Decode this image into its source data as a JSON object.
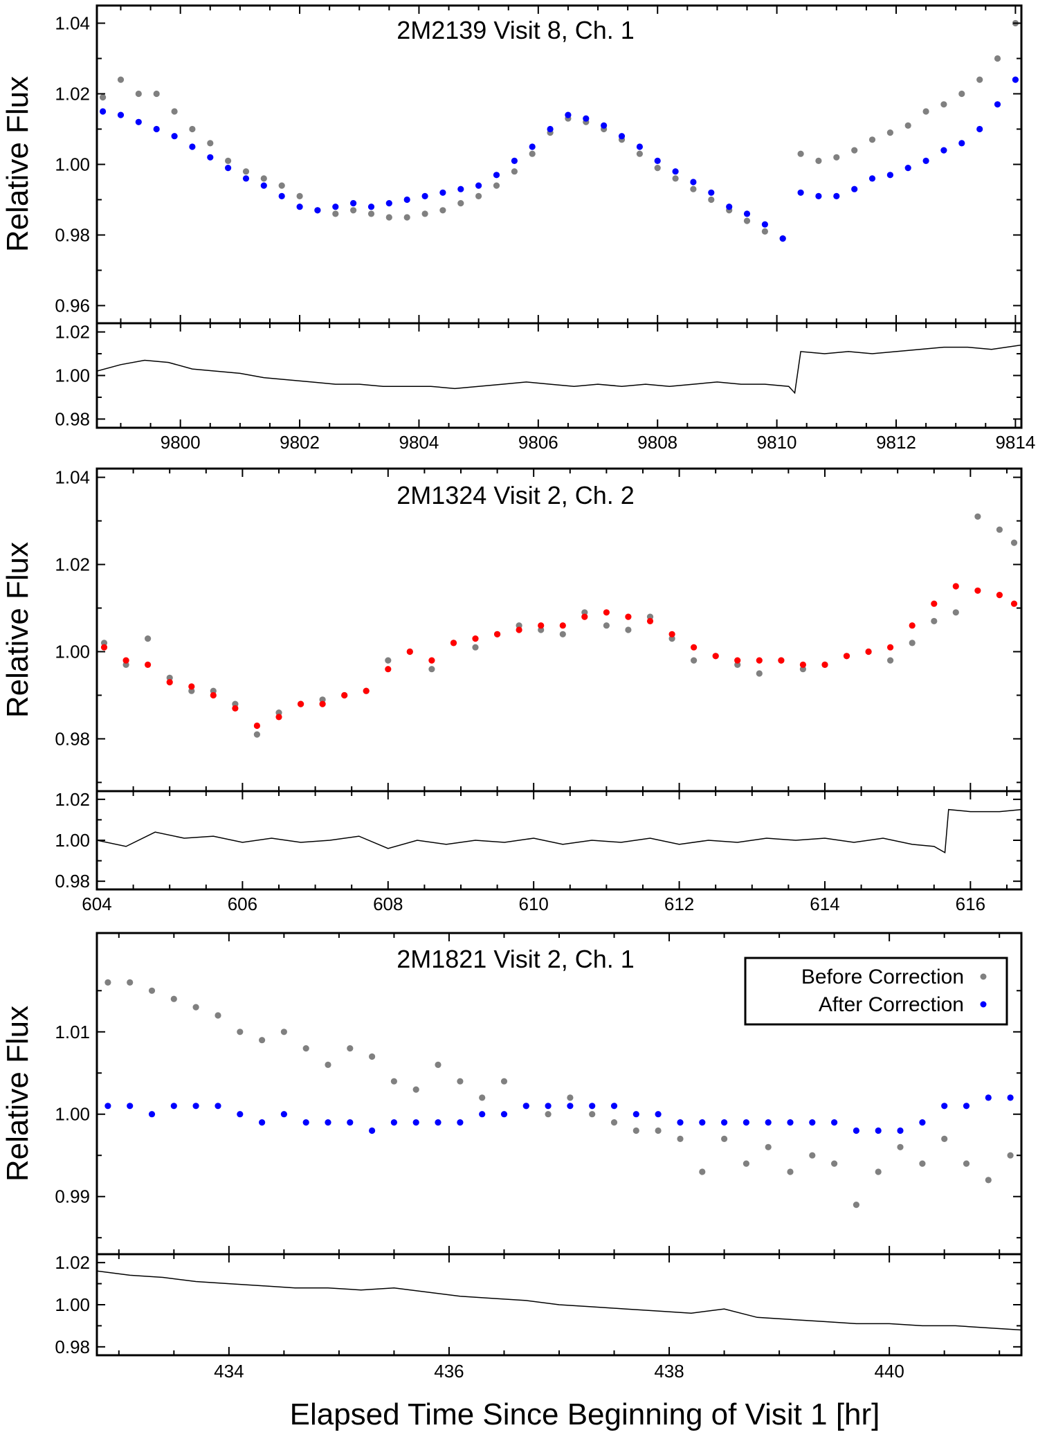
{
  "figure": {
    "ylabel": "Relative Flux",
    "xlabel": "Elapsed Time Since Beginning of Visit 1 [hr]"
  },
  "legend": {
    "before": "Before Correction",
    "after": "After Correction"
  },
  "colors": {
    "before": "#808080",
    "after_blue": "#0000ff",
    "after_red": "#ff0000",
    "line": "#000000"
  },
  "chart_data": [
    {
      "type": "scatter",
      "title": "2M2139 Visit 8, Ch. 1",
      "xlim": [
        9798.6,
        9814.1
      ],
      "ylim": [
        0.955,
        1.045
      ],
      "yticks": [
        "0.96",
        "0.98",
        "1.00",
        "1.02",
        "1.04"
      ],
      "after_color": "blue",
      "series": [
        {
          "name": "Before Correction",
          "x": [
            9798.7,
            9799.0,
            9799.3,
            9799.6,
            9799.9,
            9800.2,
            9800.5,
            9800.8,
            9801.1,
            9801.4,
            9801.7,
            9802.0,
            9802.3,
            9802.6,
            9802.9,
            9803.2,
            9803.5,
            9803.8,
            9804.1,
            9804.4,
            9804.7,
            9805.0,
            9805.3,
            9805.6,
            9805.9,
            9806.2,
            9806.5,
            9806.8,
            9807.1,
            9807.4,
            9807.7,
            9808.0,
            9808.3,
            9808.6,
            9808.9,
            9809.2,
            9809.5,
            9809.8,
            9810.1,
            9810.4,
            9810.7,
            9811.0,
            9811.3,
            9811.6,
            9811.9,
            9812.2,
            9812.5,
            9812.8,
            9813.1,
            9813.4,
            9813.7,
            9814.0
          ],
          "y": [
            1.019,
            1.024,
            1.02,
            1.02,
            1.015,
            1.01,
            1.006,
            1.001,
            0.998,
            0.996,
            0.994,
            0.991,
            0.987,
            0.986,
            0.987,
            0.986,
            0.985,
            0.985,
            0.986,
            0.987,
            0.989,
            0.991,
            0.994,
            0.998,
            1.003,
            1.009,
            1.013,
            1.012,
            1.01,
            1.007,
            1.003,
            0.999,
            0.996,
            0.993,
            0.99,
            0.987,
            0.984,
            0.981,
            0.979,
            1.003,
            1.001,
            1.002,
            1.004,
            1.007,
            1.009,
            1.011,
            1.015,
            1.017,
            1.02,
            1.024,
            1.03,
            1.04
          ]
        },
        {
          "name": "After Correction",
          "x": [
            9798.7,
            9799.0,
            9799.3,
            9799.6,
            9799.9,
            9800.2,
            9800.5,
            9800.8,
            9801.1,
            9801.4,
            9801.7,
            9802.0,
            9802.3,
            9802.6,
            9802.9,
            9803.2,
            9803.5,
            9803.8,
            9804.1,
            9804.4,
            9804.7,
            9805.0,
            9805.3,
            9805.6,
            9805.9,
            9806.2,
            9806.5,
            9806.8,
            9807.1,
            9807.4,
            9807.7,
            9808.0,
            9808.3,
            9808.6,
            9808.9,
            9809.2,
            9809.5,
            9809.8,
            9810.1,
            9810.4,
            9810.7,
            9811.0,
            9811.3,
            9811.6,
            9811.9,
            9812.2,
            9812.5,
            9812.8,
            9813.1,
            9813.4,
            9813.7,
            9814.0
          ],
          "y": [
            1.015,
            1.014,
            1.012,
            1.01,
            1.008,
            1.005,
            1.002,
            0.999,
            0.996,
            0.994,
            0.991,
            0.988,
            0.987,
            0.988,
            0.989,
            0.988,
            0.989,
            0.99,
            0.991,
            0.992,
            0.993,
            0.994,
            0.997,
            1.001,
            1.005,
            1.01,
            1.014,
            1.013,
            1.011,
            1.008,
            1.005,
            1.001,
            0.998,
            0.995,
            0.992,
            0.988,
            0.986,
            0.983,
            0.979,
            0.992,
            0.991,
            0.991,
            0.993,
            0.996,
            0.997,
            0.999,
            1.001,
            1.004,
            1.006,
            1.01,
            1.017,
            1.024
          ]
        }
      ],
      "residual": {
        "ylim": [
          0.976,
          1.024
        ],
        "yticks": [
          "0.98",
          "1.00",
          "1.02"
        ],
        "x": [
          9798.6,
          9799.0,
          9799.4,
          9799.8,
          9800.2,
          9800.6,
          9801.0,
          9801.4,
          9801.8,
          9802.2,
          9802.6,
          9803.0,
          9803.4,
          9803.8,
          9804.2,
          9804.6,
          9805.0,
          9805.4,
          9805.8,
          9806.2,
          9806.6,
          9807.0,
          9807.4,
          9807.8,
          9808.2,
          9808.6,
          9809.0,
          9809.4,
          9809.8,
          9810.2,
          9810.3,
          9810.4,
          9810.8,
          9811.2,
          9811.6,
          9812.0,
          9812.4,
          9812.8,
          9813.2,
          9813.6,
          9814.1
        ],
        "y": [
          1.002,
          1.005,
          1.007,
          1.006,
          1.003,
          1.002,
          1.001,
          0.999,
          0.998,
          0.997,
          0.996,
          0.996,
          0.995,
          0.995,
          0.995,
          0.994,
          0.995,
          0.996,
          0.997,
          0.996,
          0.995,
          0.996,
          0.995,
          0.996,
          0.995,
          0.996,
          0.997,
          0.996,
          0.996,
          0.995,
          0.992,
          1.011,
          1.01,
          1.011,
          1.01,
          1.011,
          1.012,
          1.013,
          1.013,
          1.012,
          1.014
        ]
      },
      "xticks": [
        "9800",
        "9802",
        "9804",
        "9806",
        "9808",
        "9810",
        "9812",
        "9814"
      ],
      "xtick_values": [
        9800,
        9802,
        9804,
        9806,
        9808,
        9810,
        9812,
        9814
      ]
    },
    {
      "type": "scatter",
      "title": "2M1324 Visit 2, Ch. 2",
      "xlim": [
        604.0,
        616.7
      ],
      "ylim": [
        0.968,
        1.042
      ],
      "yticks": [
        "0.98",
        "1.00",
        "1.02",
        "1.04"
      ],
      "after_color": "red",
      "series": [
        {
          "name": "Before Correction",
          "x": [
            604.1,
            604.4,
            604.7,
            605.0,
            605.3,
            605.6,
            605.9,
            606.2,
            606.5,
            606.8,
            607.1,
            607.4,
            607.7,
            608.0,
            608.3,
            608.6,
            608.9,
            609.2,
            609.5,
            609.8,
            610.1,
            610.4,
            610.7,
            611.0,
            611.3,
            611.6,
            611.9,
            612.2,
            612.5,
            612.8,
            613.1,
            613.4,
            613.7,
            614.0,
            614.3,
            614.6,
            614.9,
            615.2,
            615.5,
            615.8,
            616.1,
            616.4,
            616.6
          ],
          "y": [
            1.002,
            0.997,
            1.003,
            0.994,
            0.991,
            0.991,
            0.988,
            0.981,
            0.986,
            0.988,
            0.989,
            0.99,
            0.991,
            0.998,
            1.0,
            0.996,
            1.002,
            1.001,
            1.004,
            1.006,
            1.005,
            1.004,
            1.009,
            1.006,
            1.005,
            1.008,
            1.003,
            0.998,
            0.999,
            0.997,
            0.995,
            0.998,
            0.996,
            0.997,
            0.999,
            1.0,
            0.998,
            1.002,
            1.007,
            1.009,
            1.031,
            1.028,
            1.025
          ]
        },
        {
          "name": "After Correction",
          "x": [
            604.1,
            604.4,
            604.7,
            605.0,
            605.3,
            605.6,
            605.9,
            606.2,
            606.5,
            606.8,
            607.1,
            607.4,
            607.7,
            608.0,
            608.3,
            608.6,
            608.9,
            609.2,
            609.5,
            609.8,
            610.1,
            610.4,
            610.7,
            611.0,
            611.3,
            611.6,
            611.9,
            612.2,
            612.5,
            612.8,
            613.1,
            613.4,
            613.7,
            614.0,
            614.3,
            614.6,
            614.9,
            615.2,
            615.5,
            615.8,
            616.1,
            616.4,
            616.6
          ],
          "y": [
            1.001,
            0.998,
            0.997,
            0.993,
            0.992,
            0.99,
            0.987,
            0.983,
            0.985,
            0.988,
            0.988,
            0.99,
            0.991,
            0.996,
            1.0,
            0.998,
            1.002,
            1.003,
            1.004,
            1.005,
            1.006,
            1.006,
            1.008,
            1.009,
            1.008,
            1.007,
            1.004,
            1.001,
            0.999,
            0.998,
            0.998,
            0.998,
            0.997,
            0.997,
            0.999,
            1.0,
            1.001,
            1.006,
            1.011,
            1.015,
            1.014,
            1.013,
            1.011
          ]
        }
      ],
      "residual": {
        "ylim": [
          0.976,
          1.024
        ],
        "yticks": [
          "0.98",
          "1.00",
          "1.02"
        ],
        "x": [
          604.0,
          604.4,
          604.8,
          605.2,
          605.6,
          606.0,
          606.4,
          606.8,
          607.2,
          607.6,
          608.0,
          608.4,
          608.8,
          609.2,
          609.6,
          610.0,
          610.4,
          610.8,
          611.2,
          611.6,
          612.0,
          612.4,
          612.8,
          613.2,
          613.6,
          614.0,
          614.4,
          614.8,
          615.2,
          615.5,
          615.65,
          615.7,
          616.0,
          616.4,
          616.7
        ],
        "y": [
          1.0,
          0.997,
          1.004,
          1.001,
          1.002,
          0.999,
          1.001,
          0.999,
          1.0,
          1.002,
          0.996,
          1.0,
          0.998,
          1.0,
          0.999,
          1.001,
          0.998,
          1.0,
          0.999,
          1.001,
          0.998,
          1.0,
          0.999,
          1.001,
          1.0,
          1.001,
          0.999,
          1.001,
          0.998,
          0.997,
          0.994,
          1.015,
          1.014,
          1.014,
          1.015
        ]
      },
      "xticks": [
        "604",
        "606",
        "608",
        "610",
        "612",
        "614",
        "616"
      ],
      "xtick_values": [
        604,
        606,
        608,
        610,
        612,
        614,
        616
      ]
    },
    {
      "type": "scatter",
      "title": "2M1821 Visit 2, Ch. 1",
      "xlim": [
        432.8,
        441.2
      ],
      "ylim": [
        0.983,
        1.022
      ],
      "yticks": [
        "0.99",
        "1.00",
        "1.01"
      ],
      "after_color": "blue",
      "series": [
        {
          "name": "Before Correction",
          "x": [
            432.9,
            433.1,
            433.3,
            433.5,
            433.7,
            433.9,
            434.1,
            434.3,
            434.5,
            434.7,
            434.9,
            435.1,
            435.3,
            435.5,
            435.7,
            435.9,
            436.1,
            436.3,
            436.5,
            436.7,
            436.9,
            437.1,
            437.3,
            437.5,
            437.7,
            437.9,
            438.1,
            438.3,
            438.5,
            438.7,
            438.9,
            439.1,
            439.3,
            439.5,
            439.7,
            439.9,
            440.1,
            440.3,
            440.5,
            440.7,
            440.9,
            441.1
          ],
          "y": [
            1.016,
            1.016,
            1.015,
            1.014,
            1.013,
            1.012,
            1.01,
            1.009,
            1.01,
            1.008,
            1.006,
            1.008,
            1.007,
            1.004,
            1.003,
            1.006,
            1.004,
            1.002,
            1.004,
            1.001,
            1.0,
            1.002,
            1.0,
            0.999,
            0.998,
            0.998,
            0.997,
            0.993,
            0.997,
            0.994,
            0.996,
            0.993,
            0.995,
            0.994,
            0.989,
            0.993,
            0.996,
            0.994,
            0.997,
            0.994,
            0.992,
            0.995
          ]
        },
        {
          "name": "After Correction",
          "x": [
            432.9,
            433.1,
            433.3,
            433.5,
            433.7,
            433.9,
            434.1,
            434.3,
            434.5,
            434.7,
            434.9,
            435.1,
            435.3,
            435.5,
            435.7,
            435.9,
            436.1,
            436.3,
            436.5,
            436.7,
            436.9,
            437.1,
            437.3,
            437.5,
            437.7,
            437.9,
            438.1,
            438.3,
            438.5,
            438.7,
            438.9,
            439.1,
            439.3,
            439.5,
            439.7,
            439.9,
            440.1,
            440.3,
            440.5,
            440.7,
            440.9,
            441.1
          ],
          "y": [
            1.001,
            1.001,
            1.0,
            1.001,
            1.001,
            1.001,
            1.0,
            0.999,
            1.0,
            0.999,
            0.999,
            0.999,
            0.998,
            0.999,
            0.999,
            0.999,
            0.999,
            1.0,
            1.0,
            1.001,
            1.001,
            1.001,
            1.001,
            1.001,
            1.0,
            1.0,
            0.999,
            0.999,
            0.999,
            0.999,
            0.999,
            0.999,
            0.999,
            0.999,
            0.998,
            0.998,
            0.998,
            0.999,
            1.001,
            1.001,
            1.002,
            1.002
          ]
        }
      ],
      "residual": {
        "ylim": [
          0.976,
          1.024
        ],
        "yticks": [
          "0.98",
          "1.00",
          "1.02"
        ],
        "x": [
          432.8,
          433.1,
          433.4,
          433.7,
          434.0,
          434.3,
          434.6,
          434.9,
          435.2,
          435.5,
          435.8,
          436.1,
          436.4,
          436.7,
          437.0,
          437.3,
          437.6,
          437.9,
          438.2,
          438.5,
          438.8,
          439.1,
          439.4,
          439.7,
          440.0,
          440.3,
          440.6,
          440.9,
          441.2
        ],
        "y": [
          1.016,
          1.014,
          1.013,
          1.011,
          1.01,
          1.009,
          1.008,
          1.008,
          1.007,
          1.008,
          1.006,
          1.004,
          1.003,
          1.002,
          1.0,
          0.999,
          0.998,
          0.997,
          0.996,
          0.998,
          0.994,
          0.993,
          0.992,
          0.991,
          0.991,
          0.99,
          0.99,
          0.989,
          0.988
        ]
      },
      "xticks": [
        "434",
        "436",
        "438",
        "440"
      ],
      "xtick_values": [
        434,
        436,
        438,
        440
      ]
    }
  ]
}
